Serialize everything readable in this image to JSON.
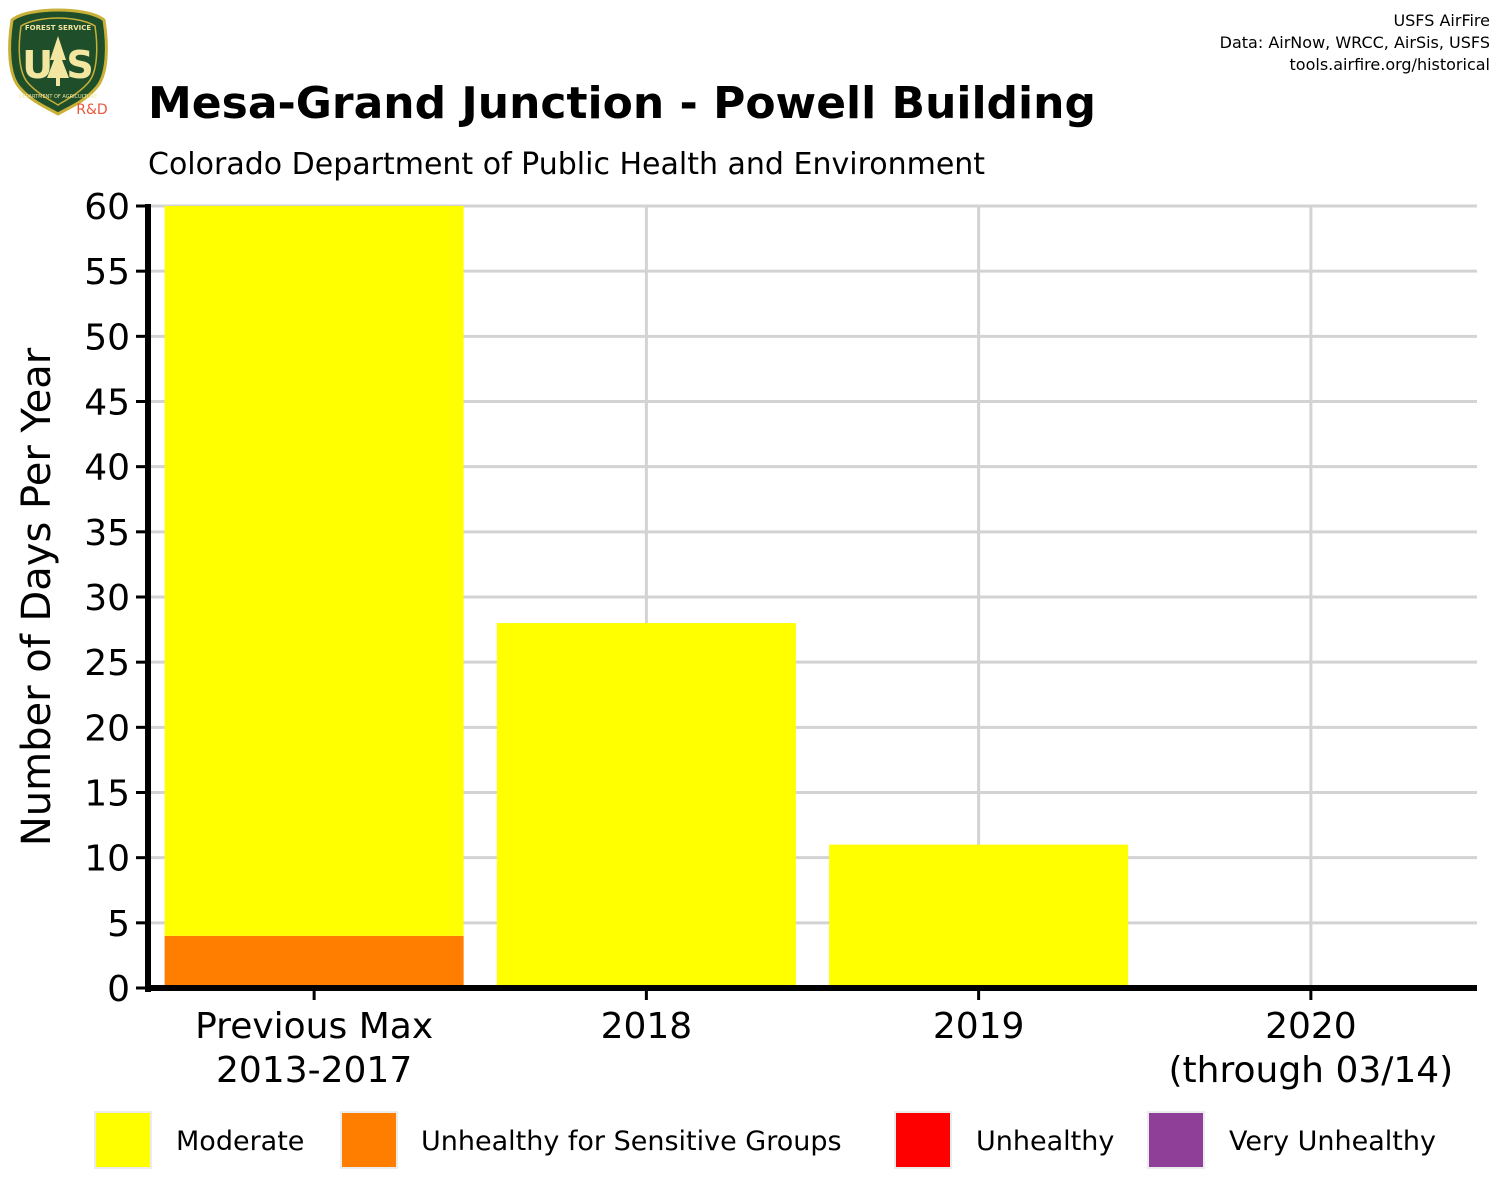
{
  "header": {
    "title": "Mesa-Grand Junction - Powell Building",
    "subtitle": "Colorado Department of Public Health and Environment",
    "credits": [
      "USFS AirFire",
      "Data: AirNow, WRCC, AirSis, USFS",
      "tools.airfire.org/historical"
    ]
  },
  "logo": {
    "top_text": "FOREST SERVICE",
    "letters": "U S",
    "bottom_text": "DEPARTMENT OF AGRICULTURE",
    "tag": "R&D"
  },
  "chart_data": {
    "type": "bar",
    "stacked": true,
    "title": "Mesa-Grand Junction - Powell Building",
    "subtitle": "Colorado Department of Public Health and Environment",
    "xlabel": "",
    "ylabel": "Number of Days Per Year",
    "ylim": [
      0,
      60
    ],
    "yticks": [
      0,
      5,
      10,
      15,
      20,
      25,
      30,
      35,
      40,
      45,
      50,
      55,
      60
    ],
    "grid": true,
    "legend_position": "bottom",
    "categories": [
      [
        "Previous Max",
        "2013-2017"
      ],
      [
        "2018"
      ],
      [
        "2019"
      ],
      [
        "2020",
        "(through 03/14)"
      ]
    ],
    "series": [
      {
        "name": "Unhealthy for Sensitive Groups",
        "color": "#FF7E00",
        "values": [
          4,
          0,
          0,
          0
        ]
      },
      {
        "name": "Moderate",
        "color": "#FFFF00",
        "values": [
          56,
          28,
          11,
          0
        ]
      },
      {
        "name": "Unhealthy",
        "color": "#FF0000",
        "values": [
          0,
          0,
          0,
          0
        ]
      },
      {
        "name": "Very Unhealthy",
        "color": "#8F3F97",
        "values": [
          0,
          0,
          0,
          0
        ]
      }
    ],
    "legend_order": [
      "Moderate",
      "Unhealthy for Sensitive Groups",
      "Unhealthy",
      "Very Unhealthy"
    ]
  }
}
